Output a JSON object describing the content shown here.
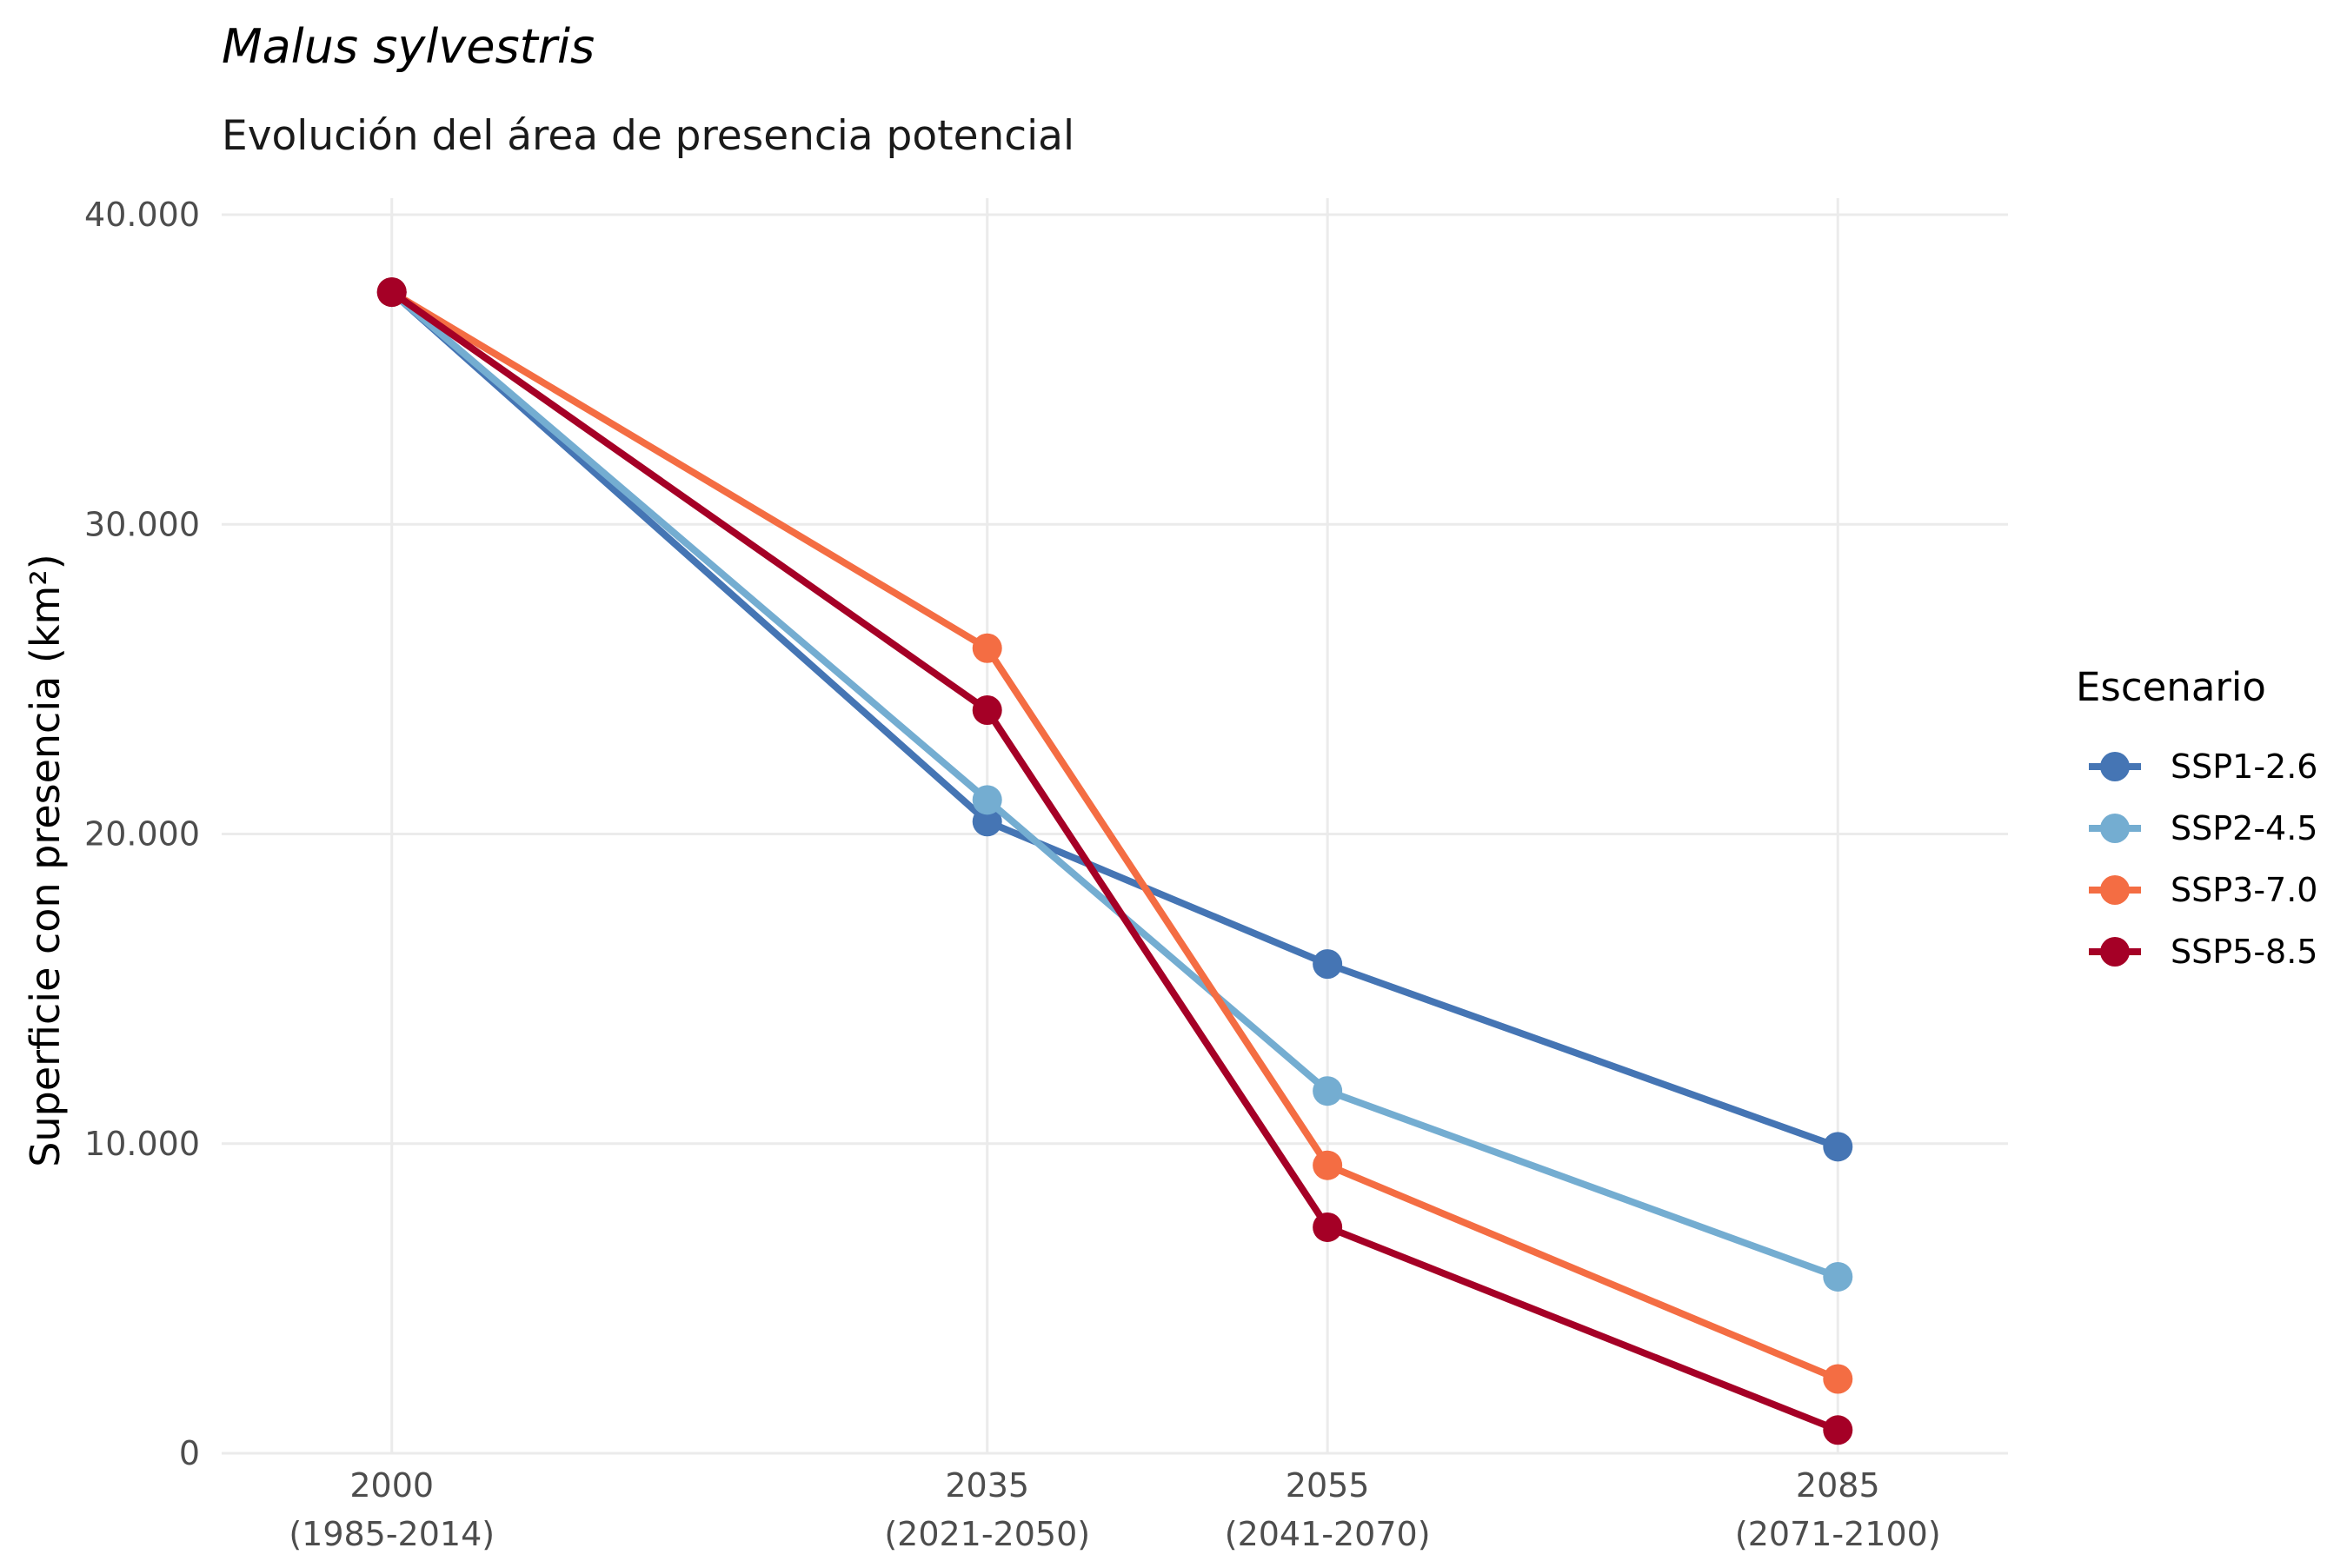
{
  "colors": {
    "grid": "#ebebeb",
    "tick_text": "#4d4d4d",
    "background": "#ffffff"
  },
  "chart_data": {
    "type": "line",
    "title": "Malus sylvestris",
    "subtitle": "Evolución del área de presencia potencial",
    "xlabel": "",
    "ylabel": "Superficie con presencia (km²)",
    "x": [
      2000,
      2035,
      2055,
      2085
    ],
    "x_tick_labels": [
      {
        "line1": "2000",
        "line2": "(1985-2014)"
      },
      {
        "line1": "2035",
        "line2": "(2021-2050)"
      },
      {
        "line1": "2055",
        "line2": "(2041-2070)"
      },
      {
        "line1": "2085",
        "line2": "(2071-2100)"
      }
    ],
    "xlim": [
      1990,
      2095
    ],
    "ylim": [
      0,
      40000
    ],
    "y_ticks": [
      0,
      10000,
      20000,
      30000,
      40000
    ],
    "y_tick_labels": [
      "0",
      "10.000",
      "20.000",
      "30.000",
      "40.000"
    ],
    "grid": true,
    "legend": {
      "title": "Escenario",
      "placement": "right"
    },
    "series": [
      {
        "name": "SSP1-2.6",
        "color": "#4575b4",
        "values": [
          37500,
          20400,
          15800,
          9900
        ]
      },
      {
        "name": "SSP2-4.5",
        "color": "#74add1",
        "values": [
          37500,
          21100,
          11700,
          5700
        ]
      },
      {
        "name": "SSP3-7.0",
        "color": "#f46d43",
        "values": [
          37500,
          26000,
          9300,
          2400
        ]
      },
      {
        "name": "SSP5-8.5",
        "color": "#a50026",
        "values": [
          37500,
          24000,
          7300,
          750
        ]
      }
    ]
  }
}
